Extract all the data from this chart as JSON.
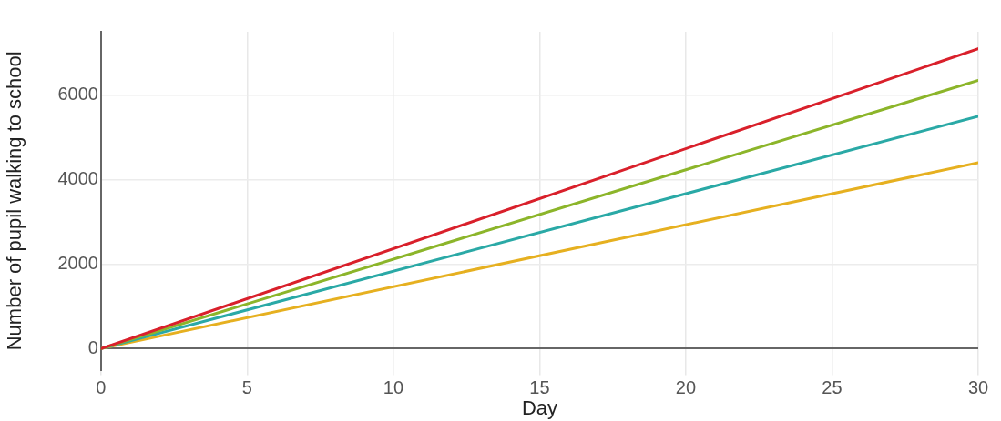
{
  "chart_data": {
    "type": "line",
    "xlabel": "Day",
    "ylabel": "Number of pupil walking to school",
    "x": [
      0,
      30
    ],
    "series": [
      {
        "color": "#d9202b",
        "values": [
          0,
          7100
        ]
      },
      {
        "color": "#8cb52a",
        "values": [
          0,
          6350
        ]
      },
      {
        "color": "#2aa9a6",
        "values": [
          0,
          5500
        ]
      },
      {
        "color": "#e6b020",
        "values": [
          0,
          4400
        ]
      }
    ],
    "xlim": [
      0,
      30
    ],
    "xticks": [
      0,
      5,
      10,
      15,
      20,
      25,
      30
    ],
    "ylim": [
      -500,
      7500
    ],
    "yticks": [
      0,
      2000,
      4000,
      6000
    ],
    "grid": true,
    "legend": false,
    "marker": "none",
    "line_style": "solid"
  }
}
